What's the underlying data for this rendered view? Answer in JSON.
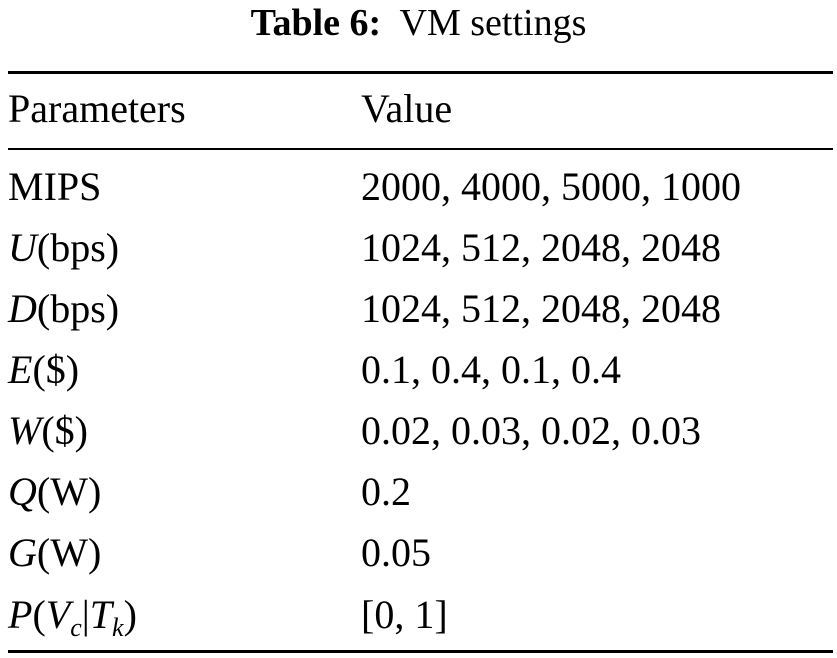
{
  "caption": {
    "label": "Table 6:",
    "title": "VM settings"
  },
  "table": {
    "headers": {
      "param": "Parameters",
      "value": "Value"
    },
    "rows": [
      {
        "param": "MIPS",
        "value": "2000, 4000, 5000, 1000"
      },
      {
        "symbol": "U",
        "unit": "(bps)",
        "value": "1024, 512, 2048, 2048"
      },
      {
        "symbol": "D",
        "unit": "(bps)",
        "value": "1024, 512, 2048, 2048"
      },
      {
        "symbol": "E",
        "unit": "($)",
        "value": "0.1, 0.4, 0.1, 0.4"
      },
      {
        "symbol": "W",
        "unit": "($)",
        "value": "0.02, 0.03, 0.02, 0.03"
      },
      {
        "symbol": "Q",
        "unit": "(W)",
        "value": "0.2"
      },
      {
        "symbol": "G",
        "unit": "(W)",
        "value": "0.05"
      },
      {
        "p_symbol": "P",
        "p_open": "(",
        "v_symbol": "V",
        "v_sub": "c",
        "bar": "|",
        "t_symbol": "T",
        "t_sub": "k",
        "p_close": ")",
        "value": "[0, 1]"
      }
    ]
  }
}
